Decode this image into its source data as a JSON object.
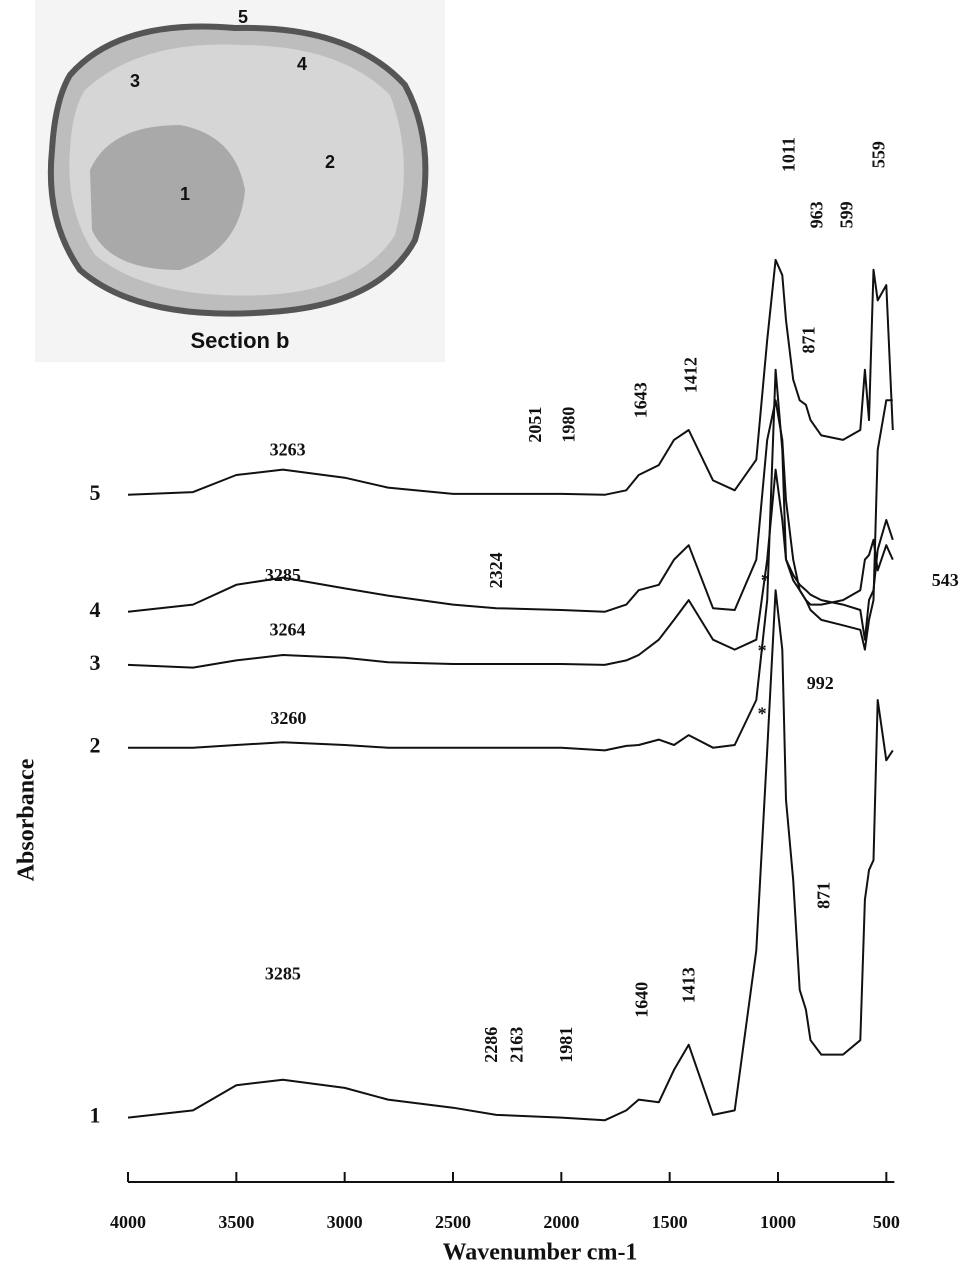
{
  "chart_data": {
    "type": "line",
    "x_label": "Wavenumber cm-1",
    "y_label": "Absorbance",
    "xlim": [
      4000,
      400
    ],
    "ylim": [
      0,
      125
    ],
    "xticks": [
      4000,
      3500,
      3000,
      2500,
      2000,
      1500,
      1000,
      500
    ],
    "x": [
      4000,
      3700,
      3500,
      3285,
      3000,
      2800,
      2500,
      2300,
      2000,
      1800,
      1700,
      1643,
      1550,
      1480,
      1412,
      1300,
      1200,
      1100,
      1050,
      1011,
      980,
      963,
      930,
      900,
      871,
      850,
      800,
      700,
      620,
      599,
      580,
      559,
      540,
      500,
      470
    ],
    "series": [
      {
        "name": "1",
        "color": "#111111",
        "values": [
          3.6,
          4.4,
          7.2,
          7.8,
          6.9,
          5.6,
          4.7,
          3.9,
          3.6,
          3.3,
          4.4,
          5.6,
          5.3,
          8.9,
          11.7,
          3.9,
          4.4,
          22.2,
          44.4,
          62.2,
          55.6,
          38.9,
          30,
          17.8,
          15.6,
          12.2,
          10.6,
          10.6,
          12.2,
          27.8,
          31.1,
          32.2,
          50,
          43.3,
          44.4
        ]
      },
      {
        "name": "2",
        "color": "#111111",
        "values": [
          44.7,
          44.7,
          45,
          45.3,
          45,
          44.7,
          44.7,
          44.7,
          44.7,
          44.4,
          44.9,
          45,
          45.6,
          45,
          46.1,
          44.7,
          45,
          50,
          61.1,
          86.7,
          77.8,
          65.6,
          63.3,
          62.2,
          61.1,
          60,
          58.9,
          58.3,
          57.8,
          55.6,
          58.9,
          61.1,
          77.8,
          83.3,
          83.3
        ]
      },
      {
        "name": "3",
        "color": "#111111",
        "values": [
          53.9,
          53.6,
          54.4,
          55,
          54.7,
          54.2,
          54,
          54,
          54,
          53.9,
          54.4,
          55,
          56.7,
          58.9,
          61.1,
          56.7,
          55.6,
          56.7,
          65.6,
          75.6,
          70,
          65.6,
          63.9,
          62.8,
          62.2,
          61.7,
          61.1,
          60.6,
          60,
          56.7,
          61.1,
          62.2,
          66.7,
          70,
          67.8
        ]
      },
      {
        "name": "4",
        "color": "#111111",
        "values": [
          59.8,
          60.6,
          62.8,
          63.6,
          62.4,
          61.6,
          60.6,
          60.2,
          60,
          59.8,
          60.6,
          62.2,
          62.8,
          65.6,
          67.2,
          60.2,
          60,
          65.6,
          78.9,
          83.3,
          78.9,
          72.2,
          65.6,
          62.2,
          61.1,
          60.6,
          60.6,
          61.1,
          62.2,
          65.6,
          66.1,
          67.8,
          64.4,
          67.2,
          65.6
        ]
      },
      {
        "name": "5",
        "color": "#111111",
        "values": [
          72.8,
          73.1,
          75,
          75.6,
          74.7,
          73.6,
          72.9,
          72.9,
          72.9,
          72.8,
          73.3,
          75,
          76.1,
          78.9,
          80,
          74.4,
          73.3,
          76.7,
          90,
          98.9,
          97.2,
          92.2,
          85.6,
          83.3,
          82.8,
          81.1,
          79.4,
          78.9,
          80,
          86.7,
          81.1,
          97.8,
          94.4,
          96.1,
          80
        ]
      }
    ],
    "annotations": [
      {
        "label": "3263",
        "x": 3263,
        "y": 77.6,
        "rotated": false
      },
      {
        "label": "3285",
        "x": 3285,
        "y": 63.7,
        "rotated": false
      },
      {
        "label": "3264",
        "x": 3264,
        "y": 57.6,
        "rotated": false
      },
      {
        "label": "3260",
        "x": 3260,
        "y": 47.8,
        "rotated": false
      },
      {
        "label": "3285",
        "x": 3285,
        "y": 19.4,
        "rotated": false
      },
      {
        "label": "992",
        "x": 805,
        "y": 51.7,
        "rotated": false
      },
      {
        "label": "543",
        "x": 228,
        "y": 63.1,
        "rotated": false
      },
      {
        "label": "2051",
        "x": 2112,
        "y": 80.6,
        "rotated": true
      },
      {
        "label": "1980",
        "x": 1959,
        "y": 80.6,
        "rotated": true
      },
      {
        "label": "1643",
        "x": 1627,
        "y": 83.3,
        "rotated": true
      },
      {
        "label": "1412",
        "x": 1396,
        "y": 86.1,
        "rotated": true
      },
      {
        "label": "2324",
        "x": 2292,
        "y": 64.4,
        "rotated": true
      },
      {
        "label": "1011",
        "x": 944,
        "y": 110.6,
        "rotated": true
      },
      {
        "label": "963",
        "x": 814,
        "y": 103.9,
        "rotated": true
      },
      {
        "label": "599",
        "x": 676,
        "y": 103.9,
        "rotated": true
      },
      {
        "label": "559",
        "x": 528,
        "y": 110.6,
        "rotated": true
      },
      {
        "label": "871",
        "x": 851,
        "y": 90,
        "rotated": true
      },
      {
        "label": "2286",
        "x": 2315,
        "y": 11.7,
        "rotated": true
      },
      {
        "label": "2163",
        "x": 2199,
        "y": 11.7,
        "rotated": true
      },
      {
        "label": "1981",
        "x": 1969,
        "y": 11.7,
        "rotated": true
      },
      {
        "label": "1640",
        "x": 1622,
        "y": 16.7,
        "rotated": true
      },
      {
        "label": "1413",
        "x": 1405,
        "y": 18.3,
        "rotated": true
      },
      {
        "label": "871",
        "x": 782,
        "y": 28.3,
        "rotated": true
      },
      {
        "label": "*",
        "x": 1059,
        "y": 63.1,
        "rotated": false
      },
      {
        "label": "*",
        "x": 1073,
        "y": 55.3,
        "rotated": false
      },
      {
        "label": "*",
        "x": 1073,
        "y": 48.3,
        "rotated": false
      }
    ],
    "inset": {
      "caption": "Section b",
      "labels": [
        "1",
        "2",
        "3",
        "4",
        "5"
      ]
    }
  }
}
